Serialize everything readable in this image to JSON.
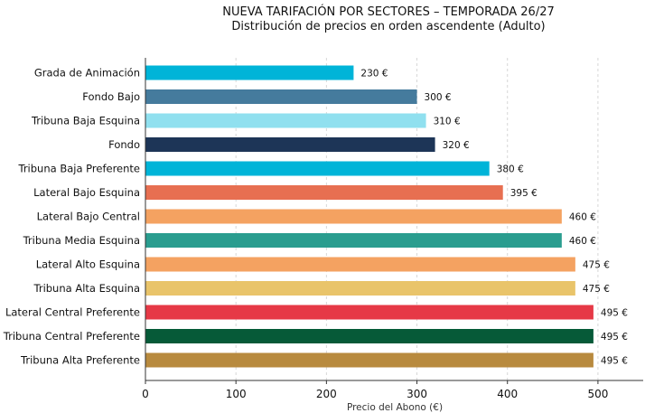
{
  "chart_data": {
    "type": "bar",
    "orientation": "horizontal",
    "title": "NUEVA TARIFACIÓN POR SECTORES – TEMPORADA 26/27",
    "subtitle": "Distribución de precios en orden ascendente (Adulto)",
    "xlabel": "Precio del Abono (€)",
    "ylabel": "",
    "xlim": [
      0,
      550
    ],
    "xticks": [
      0,
      100,
      200,
      300,
      400,
      500
    ],
    "grid": "x-dashed",
    "value_suffix": " €",
    "categories": [
      "Grada de Animación",
      "Fondo Bajo",
      "Tribuna Baja Esquina",
      "Fondo",
      "Tribuna Baja Preferente",
      "Lateral Bajo Esquina",
      "Lateral Bajo Central",
      "Tribuna Media Esquina",
      "Lateral Alto Esquina",
      "Tribuna Alta Esquina",
      "Lateral Central Preferente",
      "Tribuna Central Preferente",
      "Tribuna Alta Preferente"
    ],
    "values": [
      230,
      300,
      310,
      320,
      380,
      395,
      460,
      460,
      475,
      475,
      495,
      495,
      495
    ],
    "value_labels": [
      "230 €",
      "300 €",
      "310 €",
      "320 €",
      "380 €",
      "395 €",
      "460 €",
      "460 €",
      "475 €",
      "475 €",
      "495 €",
      "495 €",
      "495 €"
    ],
    "colors": [
      "#00b4d8",
      "#457b9d",
      "#90e0ef",
      "#1d3557",
      "#00b4d8",
      "#e76f51",
      "#f4a261",
      "#2a9d8f",
      "#f4a261",
      "#e9c46a",
      "#e63946",
      "#065a38",
      "#b88a3e"
    ]
  }
}
